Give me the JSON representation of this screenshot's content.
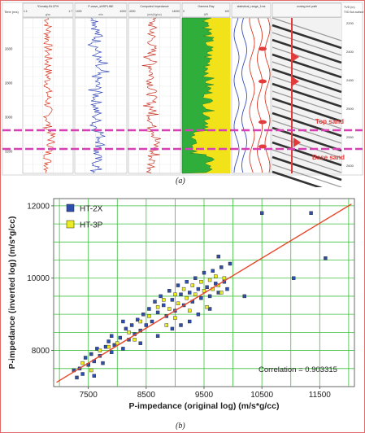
{
  "captions": {
    "a": "(a)",
    "b": "(b)"
  },
  "well_panel": {
    "time_label": "Time (ms)",
    "track_headers": [
      "*Density-BLCPH",
      "P-wave_sNSPLINE",
      "Computed Impedance",
      "Gamma Ray",
      "statistical_range_1ms",
      "zoning inel path"
    ],
    "track_units": [
      "g/cc",
      "m/s",
      "(m/s)*(g/cc)",
      "API",
      "",
      ""
    ],
    "density_scale": [
      "1.1",
      "1.7"
    ],
    "vp_scale": [
      "1000",
      "4000"
    ],
    "imp_scale": [
      "4000",
      "14000"
    ],
    "gr_scale": [
      "0",
      "100"
    ],
    "time_ticks": [
      "2600",
      "2800",
      "3000",
      "3200"
    ],
    "twt_header": "TVD (m)\nTVD Sub-surface",
    "twt_ticks": [
      "2200",
      "2400",
      "2450",
      "2500",
      "2550",
      "2600"
    ],
    "markers": {
      "top": "Top sand",
      "base": "Base sand"
    },
    "colors": {
      "marker": "#d640b4",
      "density": "#d93a25",
      "vp": "#3a4fb8",
      "impedance": "#c8392a",
      "gr_fill_sand": "#f2e219",
      "gr_fill_shale": "#2fae3c",
      "label_red": "#e23b3b"
    }
  },
  "chart_data": {
    "type": "scatter",
    "title": "",
    "xlabel": "P-impedance (original log) (m/s*g/cc)",
    "ylabel": "P-impedance (inverted log) (m/s*g/cc)",
    "xlim": [
      6900,
      12100
    ],
    "ylim": [
      7000,
      12200
    ],
    "xticks": [
      7500,
      8500,
      9500,
      10500,
      11500
    ],
    "yticks": [
      8000,
      10000,
      12000
    ],
    "grid": true,
    "legend": {
      "position": "top-left"
    },
    "annotation": "Correlation = 0.903315",
    "fit_line": {
      "x": [
        6950,
        12050
      ],
      "y": [
        7120,
        12050
      ],
      "color": "#e8472a"
    },
    "series": [
      {
        "name": "HT-2X",
        "color": "#2f4fae",
        "marker": "square",
        "points": [
          [
            7300,
            7250
          ],
          [
            7350,
            7500
          ],
          [
            7400,
            7350
          ],
          [
            7450,
            7800
          ],
          [
            7500,
            7600
          ],
          [
            7550,
            7900
          ],
          [
            7600,
            7700
          ],
          [
            7650,
            8050
          ],
          [
            7700,
            7850
          ],
          [
            7750,
            7650
          ],
          [
            7800,
            8100
          ],
          [
            7850,
            8250
          ],
          [
            7900,
            7950
          ],
          [
            7950,
            8150
          ],
          [
            8050,
            8350
          ],
          [
            8100,
            8050
          ],
          [
            8150,
            8600
          ],
          [
            8200,
            8300
          ],
          [
            8250,
            8700
          ],
          [
            8300,
            8450
          ],
          [
            8350,
            8850
          ],
          [
            8400,
            8550
          ],
          [
            8450,
            9000
          ],
          [
            8500,
            8700
          ],
          [
            8550,
            9150
          ],
          [
            8600,
            8800
          ],
          [
            8650,
            9350
          ],
          [
            8700,
            9050
          ],
          [
            8750,
            9500
          ],
          [
            8800,
            9250
          ],
          [
            8850,
            8950
          ],
          [
            8900,
            9650
          ],
          [
            8950,
            9400
          ],
          [
            9000,
            9100
          ],
          [
            9050,
            9800
          ],
          [
            9100,
            9550
          ],
          [
            9150,
            9250
          ],
          [
            9200,
            9900
          ],
          [
            9250,
            9600
          ],
          [
            9300,
            9350
          ],
          [
            9350,
            10000
          ],
          [
            9400,
            9700
          ],
          [
            9450,
            9450
          ],
          [
            9500,
            10150
          ],
          [
            9550,
            9750
          ],
          [
            9600,
            9500
          ],
          [
            9650,
            10200
          ],
          [
            9700,
            9850
          ],
          [
            9750,
            9600
          ],
          [
            9800,
            10300
          ],
          [
            9850,
            9900
          ],
          [
            9900,
            9700
          ],
          [
            9950,
            10400
          ],
          [
            9100,
            8700
          ],
          [
            9250,
            8800
          ],
          [
            8950,
            8600
          ],
          [
            9400,
            9000
          ],
          [
            9600,
            9150
          ],
          [
            8700,
            8400
          ],
          [
            8400,
            8200
          ],
          [
            7600,
            7300
          ],
          [
            7250,
            7450
          ],
          [
            7900,
            8400
          ],
          [
            8100,
            8800
          ],
          [
            10200,
            9500
          ],
          [
            10500,
            11800
          ],
          [
            11050,
            10000
          ],
          [
            11350,
            11800
          ],
          [
            11600,
            10550
          ],
          [
            9750,
            10600
          ]
        ]
      },
      {
        "name": "HT-3P",
        "color": "#ecec22",
        "marker": "square",
        "points": [
          [
            7400,
            7650
          ],
          [
            7550,
            7450
          ],
          [
            7700,
            8000
          ],
          [
            7850,
            8100
          ],
          [
            8000,
            8200
          ],
          [
            8200,
            8500
          ],
          [
            8400,
            8800
          ],
          [
            8550,
            8950
          ],
          [
            8700,
            9200
          ],
          [
            8800,
            9400
          ],
          [
            8900,
            9150
          ],
          [
            9000,
            9550
          ],
          [
            9050,
            9300
          ],
          [
            9150,
            9700
          ],
          [
            9200,
            9450
          ],
          [
            9300,
            9800
          ],
          [
            9350,
            9550
          ],
          [
            9450,
            9900
          ],
          [
            9500,
            9650
          ],
          [
            9600,
            9950
          ],
          [
            9650,
            9700
          ],
          [
            9700,
            10050
          ],
          [
            9750,
            9800
          ],
          [
            9800,
            9600
          ],
          [
            9850,
            10000
          ],
          [
            8300,
            8300
          ],
          [
            8850,
            8700
          ],
          [
            9250,
            9100
          ],
          [
            9550,
            9200
          ],
          [
            9000,
            8900
          ]
        ]
      }
    ]
  }
}
